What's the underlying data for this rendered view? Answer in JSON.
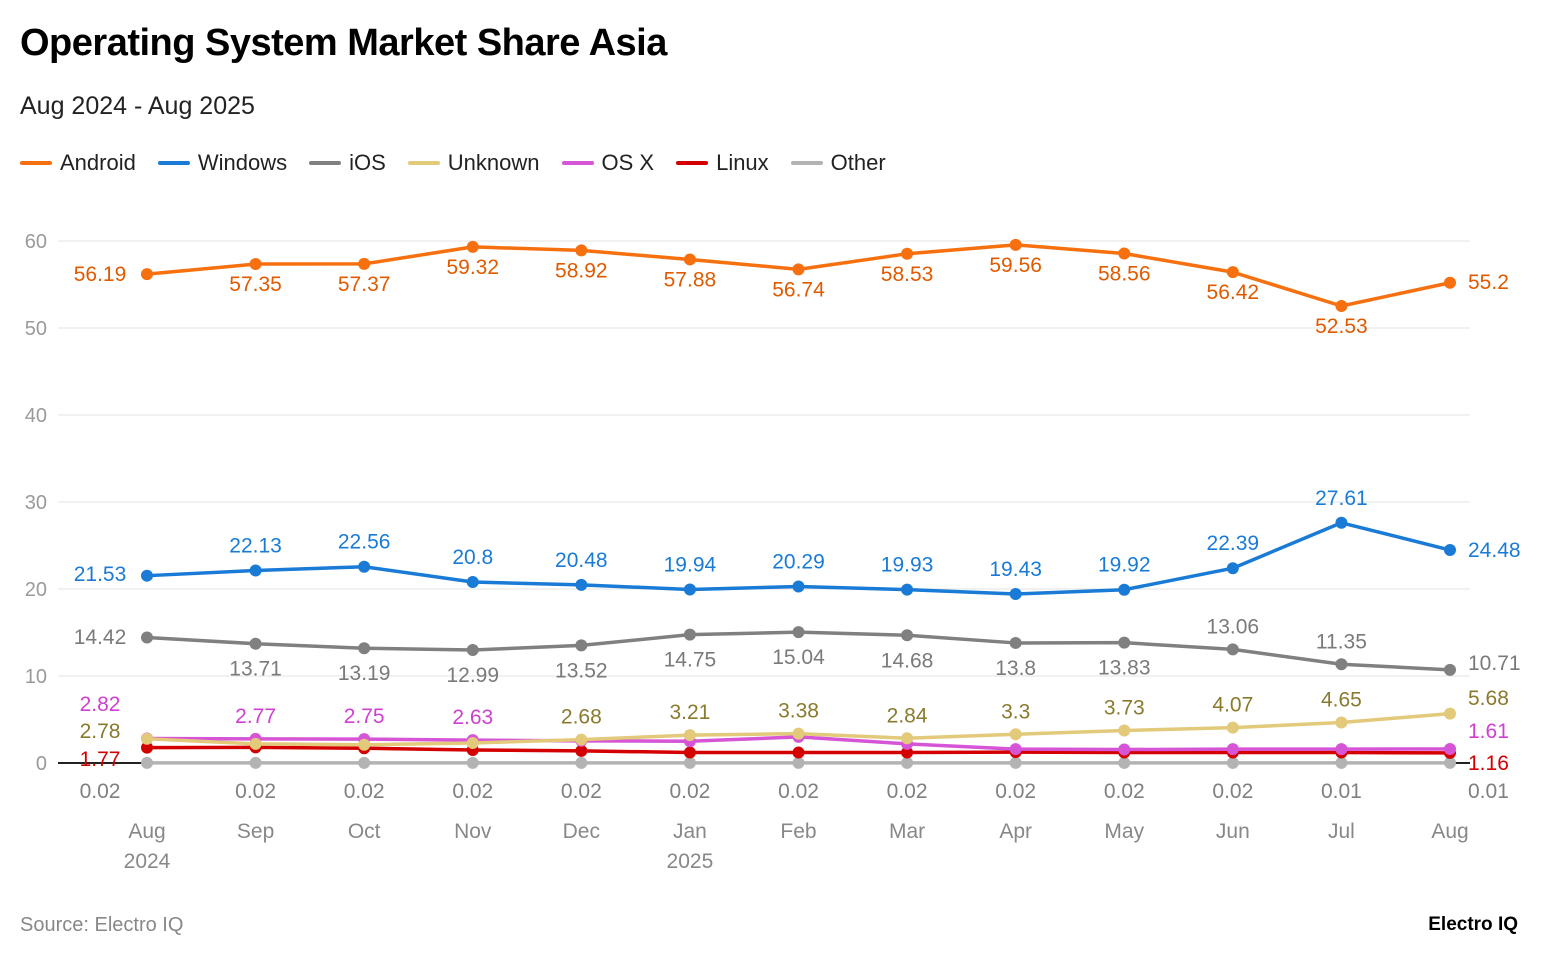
{
  "chart_data": {
    "type": "line",
    "title": "Operating System Market Share Asia",
    "subtitle": "Aug 2024 - Aug 2025",
    "source": "Source: Electro IQ",
    "brand": "Electro IQ",
    "legend_position": "top-left",
    "grid": true,
    "ylim": [
      0,
      60
    ],
    "yticks": [
      "0",
      "10",
      "20",
      "30",
      "40",
      "50",
      "60"
    ],
    "categories": [
      "Aug\n2024",
      "Sep",
      "Oct",
      "Nov",
      "Dec",
      "Jan\n2025",
      "Feb",
      "Mar",
      "Apr",
      "May",
      "Jun",
      "Jul",
      "Aug"
    ],
    "series": [
      {
        "name": "Android",
        "color": "#f7700f",
        "label_color": "#e05a00",
        "values": [
          56.19,
          57.35,
          57.37,
          59.32,
          58.92,
          57.88,
          56.74,
          58.53,
          59.56,
          58.56,
          56.42,
          52.53,
          55.2
        ],
        "labels": [
          "56.19",
          "57.35",
          "57.37",
          "59.32",
          "58.92",
          "57.88",
          "56.74",
          "58.53",
          "59.56",
          "58.56",
          "56.42",
          "52.53",
          "55.2"
        ]
      },
      {
        "name": "Windows",
        "color": "#1a7bd6",
        "label_color": "#1a7bd6",
        "values": [
          21.53,
          22.13,
          22.56,
          20.8,
          20.48,
          19.94,
          20.29,
          19.93,
          19.43,
          19.92,
          22.39,
          27.61,
          24.48
        ],
        "labels": [
          "21.53",
          "22.13",
          "22.56",
          "20.8",
          "20.48",
          "19.94",
          "20.29",
          "19.93",
          "19.43",
          "19.92",
          "22.39",
          "27.61",
          "24.48"
        ]
      },
      {
        "name": "iOS",
        "color": "#808080",
        "label_color": "#7a7a7a",
        "values": [
          14.42,
          13.71,
          13.19,
          12.99,
          13.52,
          14.75,
          15.04,
          14.68,
          13.8,
          13.83,
          13.06,
          11.35,
          10.71
        ],
        "labels": [
          "14.42",
          "13.71",
          "13.19",
          "12.99",
          "13.52",
          "14.75",
          "15.04",
          "14.68",
          "13.8",
          "13.83",
          "13.06",
          "11.35",
          "10.71"
        ]
      },
      {
        "name": "Unknown",
        "color": "#e3c97a",
        "label_color": "#8a7a2e",
        "values": [
          2.78,
          2.2,
          2.1,
          2.3,
          2.68,
          3.21,
          3.38,
          2.84,
          3.3,
          3.73,
          4.07,
          4.65,
          5.68
        ],
        "labels": [
          "2.78",
          null,
          null,
          null,
          "2.68",
          "3.21",
          "3.38",
          "2.84",
          "3.3",
          "3.73",
          "4.07",
          "4.65",
          "5.68"
        ]
      },
      {
        "name": "OS X",
        "color": "#d655d6",
        "label_color": "#d040d0",
        "values": [
          2.82,
          2.77,
          2.75,
          2.63,
          2.55,
          2.5,
          3.0,
          2.2,
          1.6,
          1.55,
          1.6,
          1.6,
          1.61
        ],
        "labels": [
          "2.82",
          "2.77",
          "2.75",
          "2.63",
          null,
          null,
          null,
          null,
          null,
          null,
          null,
          null,
          "1.61"
        ]
      },
      {
        "name": "Linux",
        "color": "#d40000",
        "label_color": "#d40000",
        "values": [
          1.77,
          1.8,
          1.7,
          1.5,
          1.4,
          1.2,
          1.2,
          1.2,
          1.25,
          1.2,
          1.2,
          1.2,
          1.16
        ],
        "labels": [
          "1.77",
          null,
          null,
          null,
          null,
          null,
          null,
          null,
          null,
          null,
          null,
          null,
          "1.16"
        ]
      },
      {
        "name": "Other",
        "color": "#b3b3b3",
        "label_color": "#808080",
        "values": [
          0.02,
          0.02,
          0.02,
          0.02,
          0.02,
          0.02,
          0.02,
          0.02,
          0.02,
          0.02,
          0.02,
          0.01,
          0.01
        ],
        "labels": [
          "0.02",
          "0.02",
          "0.02",
          "0.02",
          "0.02",
          "0.02",
          "0.02",
          "0.02",
          "0.02",
          "0.02",
          "0.02",
          "0.01",
          "0.01"
        ]
      }
    ]
  }
}
